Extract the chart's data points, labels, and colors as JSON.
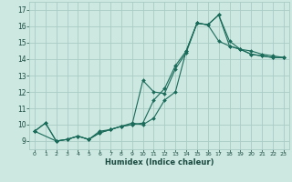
{
  "title": "",
  "xlabel": "Humidex (Indice chaleur)",
  "ylabel": "",
  "bg_color": "#cce8e0",
  "grid_color": "#aaccc4",
  "line_color": "#1a6b5a",
  "xlim": [
    -0.5,
    23.5
  ],
  "ylim": [
    8.5,
    17.5
  ],
  "xticks": [
    0,
    1,
    2,
    3,
    4,
    5,
    6,
    7,
    8,
    9,
    10,
    11,
    12,
    13,
    14,
    15,
    16,
    17,
    18,
    19,
    20,
    21,
    22,
    23
  ],
  "yticks": [
    9,
    10,
    11,
    12,
    13,
    14,
    15,
    16,
    17
  ],
  "line1_x": [
    0,
    1,
    2,
    3,
    4,
    5,
    6,
    7,
    8,
    9,
    10,
    11,
    12,
    13,
    14,
    15,
    16,
    17,
    18,
    19,
    20,
    21,
    22,
    23
  ],
  "line1_y": [
    9.6,
    10.1,
    9.0,
    9.1,
    9.3,
    9.1,
    9.6,
    9.7,
    9.9,
    10.1,
    10.0,
    10.4,
    11.5,
    12.0,
    14.5,
    16.2,
    16.1,
    15.1,
    14.8,
    14.6,
    14.3,
    14.2,
    14.1,
    14.1
  ],
  "line2_x": [
    0,
    1,
    2,
    3,
    4,
    5,
    6,
    7,
    8,
    9,
    10,
    11,
    12,
    13,
    14,
    15,
    16,
    17,
    18,
    19,
    20,
    21,
    22,
    23
  ],
  "line2_y": [
    9.6,
    10.1,
    9.0,
    9.1,
    9.3,
    9.1,
    9.5,
    9.7,
    9.9,
    10.0,
    12.7,
    12.0,
    11.9,
    13.4,
    14.4,
    16.2,
    16.1,
    16.7,
    14.8,
    14.6,
    14.3,
    14.2,
    14.1,
    14.1
  ],
  "line3_x": [
    0,
    2,
    3,
    4,
    5,
    6,
    7,
    8,
    9,
    10,
    11,
    12,
    13,
    14,
    15,
    16,
    17,
    18,
    19,
    20,
    21,
    22,
    23
  ],
  "line3_y": [
    9.6,
    9.0,
    9.1,
    9.3,
    9.1,
    9.5,
    9.7,
    9.9,
    10.0,
    10.1,
    11.5,
    12.2,
    13.6,
    14.5,
    16.2,
    16.1,
    16.7,
    15.1,
    14.6,
    14.5,
    14.3,
    14.2,
    14.1
  ]
}
